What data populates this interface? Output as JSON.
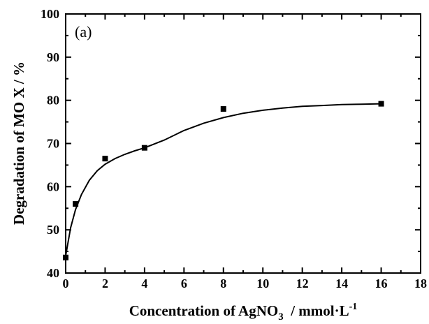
{
  "chart_data": {
    "type": "scatter",
    "panel_label": "(a)",
    "xlabel": {
      "main": "Concentration of AgNO",
      "sub": "3",
      "unit": "  / mmol·L",
      "sup": "-1"
    },
    "ylabel": "Degradation of  MO  X / %",
    "xlim": [
      0,
      18
    ],
    "ylim": [
      40,
      100
    ],
    "xticks": [
      "0",
      "2",
      "4",
      "6",
      "8",
      "10",
      "12",
      "14",
      "16",
      "18"
    ],
    "yticks": [
      "40",
      "50",
      "60",
      "70",
      "80",
      "90",
      "100"
    ],
    "grid": false,
    "series": [
      {
        "marker": "square",
        "color": "#000000",
        "points": [
          {
            "x": 0,
            "y": 43.6
          },
          {
            "x": 0.5,
            "y": 56.0
          },
          {
            "x": 2,
            "y": 66.5
          },
          {
            "x": 4,
            "y": 69.0
          },
          {
            "x": 8,
            "y": 78.0
          },
          {
            "x": 16,
            "y": 79.2
          }
        ]
      }
    ],
    "fit_curve": {
      "color": "#000000",
      "points": [
        {
          "x": 0,
          "y": 44.0
        },
        {
          "x": 0.25,
          "y": 50.5
        },
        {
          "x": 0.5,
          "y": 54.7
        },
        {
          "x": 0.8,
          "y": 58.2
        },
        {
          "x": 1.2,
          "y": 61.5
        },
        {
          "x": 1.6,
          "y": 63.7
        },
        {
          "x": 2.0,
          "y": 65.2
        },
        {
          "x": 2.5,
          "y": 66.5
        },
        {
          "x": 3.0,
          "y": 67.5
        },
        {
          "x": 3.5,
          "y": 68.3
        },
        {
          "x": 4.0,
          "y": 69.0
        },
        {
          "x": 5.0,
          "y": 70.8
        },
        {
          "x": 6.0,
          "y": 73.0
        },
        {
          "x": 7.0,
          "y": 74.7
        },
        {
          "x": 8.0,
          "y": 76.0
        },
        {
          "x": 9.0,
          "y": 77.0
        },
        {
          "x": 10.0,
          "y": 77.7
        },
        {
          "x": 11.0,
          "y": 78.2
        },
        {
          "x": 12.0,
          "y": 78.6
        },
        {
          "x": 13.0,
          "y": 78.8
        },
        {
          "x": 14.0,
          "y": 79.0
        },
        {
          "x": 15.0,
          "y": 79.1
        },
        {
          "x": 16.0,
          "y": 79.2
        }
      ]
    }
  }
}
